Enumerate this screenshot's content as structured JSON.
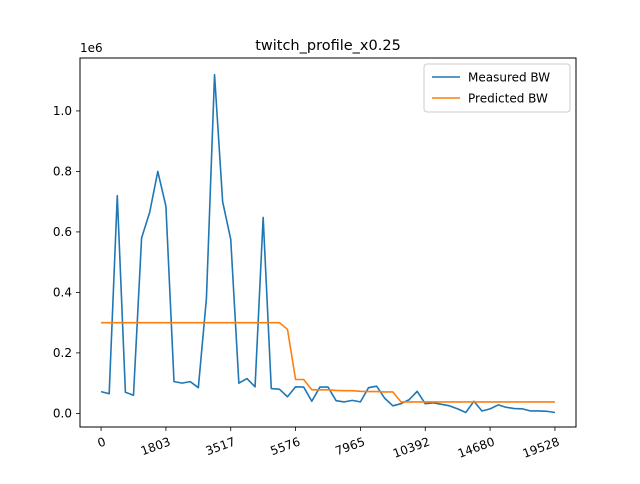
{
  "chart_data": {
    "type": "line",
    "title": "twitch_profile_x0.25",
    "offset_label": "1e6",
    "xlabel": "",
    "ylabel": "",
    "x_tick_labels": [
      "0",
      "1803",
      "3517",
      "5576",
      "7965",
      "10392",
      "14680",
      "19528"
    ],
    "x_index_range": [
      0,
      56
    ],
    "y_ticks": [
      0.0,
      0.2,
      0.4,
      0.6,
      0.8,
      1.0
    ],
    "y_tick_labels": [
      "0.0",
      "0.2",
      "0.4",
      "0.6",
      "0.8",
      "1.0"
    ],
    "ylim": [
      -0.045,
      1.175
    ],
    "legend_position": "top-right",
    "grid": false,
    "series": [
      {
        "name": "Measured BW",
        "color": "#1f77b4",
        "x": [
          0,
          1,
          2,
          3,
          4,
          5,
          6,
          7,
          8,
          9,
          10,
          11,
          12,
          13,
          14,
          15,
          16,
          17,
          18,
          19,
          20,
          21,
          22,
          23,
          24,
          25,
          26,
          27,
          28,
          29,
          30,
          31,
          32,
          33,
          34,
          35,
          36,
          37,
          38,
          39,
          40,
          41,
          42,
          43,
          44,
          45,
          46,
          47,
          48,
          49,
          50,
          51,
          52,
          53,
          54,
          55,
          56
        ],
        "values": [
          0.072,
          0.065,
          0.72,
          0.07,
          0.06,
          0.58,
          0.665,
          0.8,
          0.685,
          0.105,
          0.1,
          0.105,
          0.085,
          0.38,
          1.12,
          0.7,
          0.575,
          0.1,
          0.115,
          0.088,
          0.648,
          0.082,
          0.08,
          0.055,
          0.088,
          0.087,
          0.04,
          0.087,
          0.087,
          0.042,
          0.038,
          0.043,
          0.038,
          0.085,
          0.09,
          0.05,
          0.025,
          0.032,
          0.045,
          0.073,
          0.032,
          0.035,
          0.03,
          0.025,
          0.015,
          0.003,
          0.04,
          0.008,
          0.015,
          0.028,
          0.02,
          0.016,
          0.015,
          0.008,
          0.008,
          0.007,
          0.003
        ]
      },
      {
        "name": "Predicted BW",
        "color": "#ff7f0e",
        "x": [
          0,
          1,
          2,
          3,
          4,
          5,
          6,
          7,
          8,
          9,
          10,
          11,
          12,
          13,
          14,
          15,
          16,
          17,
          18,
          19,
          20,
          21,
          22,
          23,
          24,
          25,
          26,
          27,
          28,
          29,
          30,
          31,
          32,
          33,
          34,
          35,
          36,
          37,
          38,
          39,
          40,
          41,
          42,
          43,
          44,
          45,
          46,
          47,
          48,
          49,
          50,
          51,
          52,
          53,
          54,
          55,
          56
        ],
        "values": [
          0.3,
          0.3,
          0.3,
          0.3,
          0.3,
          0.3,
          0.3,
          0.3,
          0.3,
          0.3,
          0.3,
          0.3,
          0.3,
          0.3,
          0.3,
          0.3,
          0.3,
          0.3,
          0.3,
          0.3,
          0.3,
          0.3,
          0.3,
          0.278,
          0.112,
          0.112,
          0.078,
          0.078,
          0.078,
          0.076,
          0.075,
          0.075,
          0.073,
          0.072,
          0.072,
          0.071,
          0.071,
          0.038,
          0.038,
          0.038,
          0.038,
          0.038,
          0.038,
          0.038,
          0.038,
          0.038,
          0.038,
          0.038,
          0.038,
          0.038,
          0.038,
          0.038,
          0.038,
          0.038,
          0.038,
          0.038,
          0.038
        ]
      }
    ]
  }
}
